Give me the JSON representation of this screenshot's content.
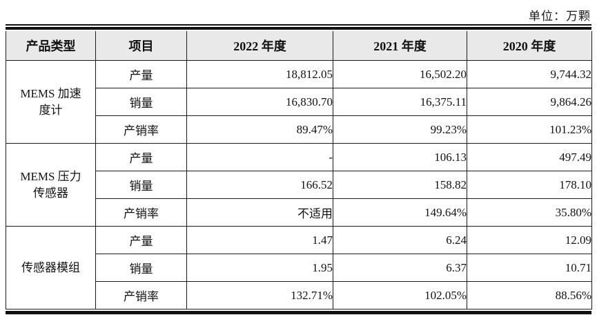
{
  "page": {
    "unit_label": "单位：万颗"
  },
  "colors": {
    "header_background": "#e9e9e9",
    "border": "#1a1a1a",
    "text": "#111111"
  },
  "table": {
    "headers": [
      "产品类型",
      "项目",
      "2022 年度",
      "2021 年度",
      "2020 年度"
    ],
    "groups": [
      {
        "product": "MEMS 加速度计",
        "product_label": "MEMS 加速\n度计",
        "rows": [
          {
            "item": "产量",
            "y2022": "18,812.05",
            "y2021": "16,502.20",
            "y2020": "9,744.32"
          },
          {
            "item": "销量",
            "y2022": "16,830.70",
            "y2021": "16,375.11",
            "y2020": "9,864.26"
          },
          {
            "item": "产销率",
            "y2022": "89.47%",
            "y2021": "99.23%",
            "y2020": "101.23%"
          }
        ]
      },
      {
        "product": "MEMS 压力传感器",
        "product_label": "MEMS 压力\n传感器",
        "rows": [
          {
            "item": "产量",
            "y2022": "-",
            "y2021": "106.13",
            "y2020": "497.49"
          },
          {
            "item": "销量",
            "y2022": "166.52",
            "y2021": "158.82",
            "y2020": "178.10"
          },
          {
            "item": "产销率",
            "y2022": "不适用",
            "y2021": "149.64%",
            "y2020": "35.80%"
          }
        ]
      },
      {
        "product": "传感器模组",
        "product_label": "传感器模组",
        "rows": [
          {
            "item": "产量",
            "y2022": "1.47",
            "y2021": "6.24",
            "y2020": "12.09"
          },
          {
            "item": "销量",
            "y2022": "1.95",
            "y2021": "6.37",
            "y2020": "10.71"
          },
          {
            "item": "产销率",
            "y2022": "132.71%",
            "y2021": "102.05%",
            "y2020": "88.56%"
          }
        ]
      }
    ]
  }
}
